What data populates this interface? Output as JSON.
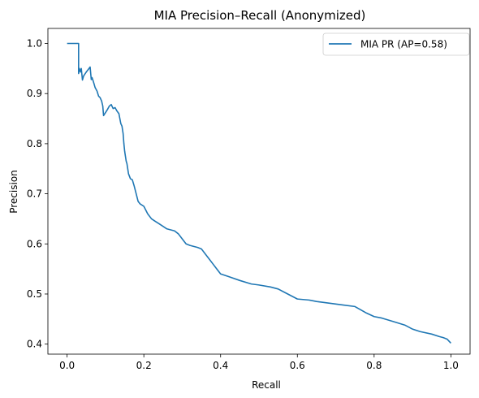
{
  "chart_data": {
    "type": "line",
    "title": "MIA Precision–Recall (Anonymized)",
    "xlabel": "Recall",
    "ylabel": "Precision",
    "xlim": [
      -0.05,
      1.05
    ],
    "ylim": [
      0.38,
      1.03
    ],
    "xticks": [
      0.0,
      0.2,
      0.4,
      0.6,
      0.8,
      1.0
    ],
    "xtick_labels": [
      "0.0",
      "0.2",
      "0.4",
      "0.6",
      "0.8",
      "1.0"
    ],
    "yticks": [
      0.4,
      0.5,
      0.6,
      0.7,
      0.8,
      0.9,
      1.0
    ],
    "ytick_labels": [
      "0.4",
      "0.5",
      "0.6",
      "0.7",
      "0.8",
      "0.9",
      "1.0"
    ],
    "grid": false,
    "legend_position": "top-right",
    "series": [
      {
        "name": "MIA PR (AP=0.58)",
        "color": "#1f77b4",
        "x": [
          0.0,
          0.01,
          0.02,
          0.028,
          0.03,
          0.03,
          0.032,
          0.035,
          0.037,
          0.04,
          0.043,
          0.05,
          0.055,
          0.06,
          0.063,
          0.065,
          0.068,
          0.07,
          0.073,
          0.078,
          0.082,
          0.086,
          0.09,
          0.093,
          0.095,
          0.1,
          0.105,
          0.11,
          0.115,
          0.12,
          0.125,
          0.13,
          0.135,
          0.14,
          0.143,
          0.146,
          0.148,
          0.15,
          0.152,
          0.154,
          0.156,
          0.158,
          0.16,
          0.165,
          0.17,
          0.175,
          0.18,
          0.185,
          0.19,
          0.2,
          0.21,
          0.22,
          0.23,
          0.24,
          0.25,
          0.26,
          0.27,
          0.28,
          0.29,
          0.3,
          0.31,
          0.32,
          0.33,
          0.34,
          0.35,
          0.36,
          0.37,
          0.38,
          0.39,
          0.4,
          0.42,
          0.45,
          0.48,
          0.5,
          0.53,
          0.55,
          0.57,
          0.6,
          0.63,
          0.65,
          0.68,
          0.7,
          0.72,
          0.75,
          0.78,
          0.8,
          0.82,
          0.85,
          0.88,
          0.9,
          0.92,
          0.95,
          0.97,
          0.98,
          0.99,
          1.0
        ],
        "y": [
          1.0,
          1.0,
          1.0,
          1.0,
          1.0,
          0.94,
          0.95,
          0.943,
          0.95,
          0.927,
          0.935,
          0.943,
          0.948,
          0.953,
          0.928,
          0.932,
          0.925,
          0.92,
          0.912,
          0.905,
          0.895,
          0.892,
          0.885,
          0.875,
          0.856,
          0.862,
          0.868,
          0.875,
          0.878,
          0.87,
          0.872,
          0.865,
          0.86,
          0.84,
          0.835,
          0.82,
          0.8,
          0.785,
          0.775,
          0.765,
          0.76,
          0.75,
          0.74,
          0.73,
          0.728,
          0.715,
          0.7,
          0.685,
          0.68,
          0.675,
          0.66,
          0.65,
          0.645,
          0.64,
          0.635,
          0.63,
          0.628,
          0.626,
          0.62,
          0.61,
          0.6,
          0.597,
          0.595,
          0.593,
          0.59,
          0.58,
          0.57,
          0.56,
          0.55,
          0.54,
          0.535,
          0.527,
          0.52,
          0.518,
          0.514,
          0.51,
          0.502,
          0.49,
          0.488,
          0.485,
          0.482,
          0.48,
          0.478,
          0.475,
          0.462,
          0.455,
          0.452,
          0.445,
          0.438,
          0.43,
          0.425,
          0.42,
          0.415,
          0.413,
          0.41,
          0.402
        ]
      }
    ]
  }
}
